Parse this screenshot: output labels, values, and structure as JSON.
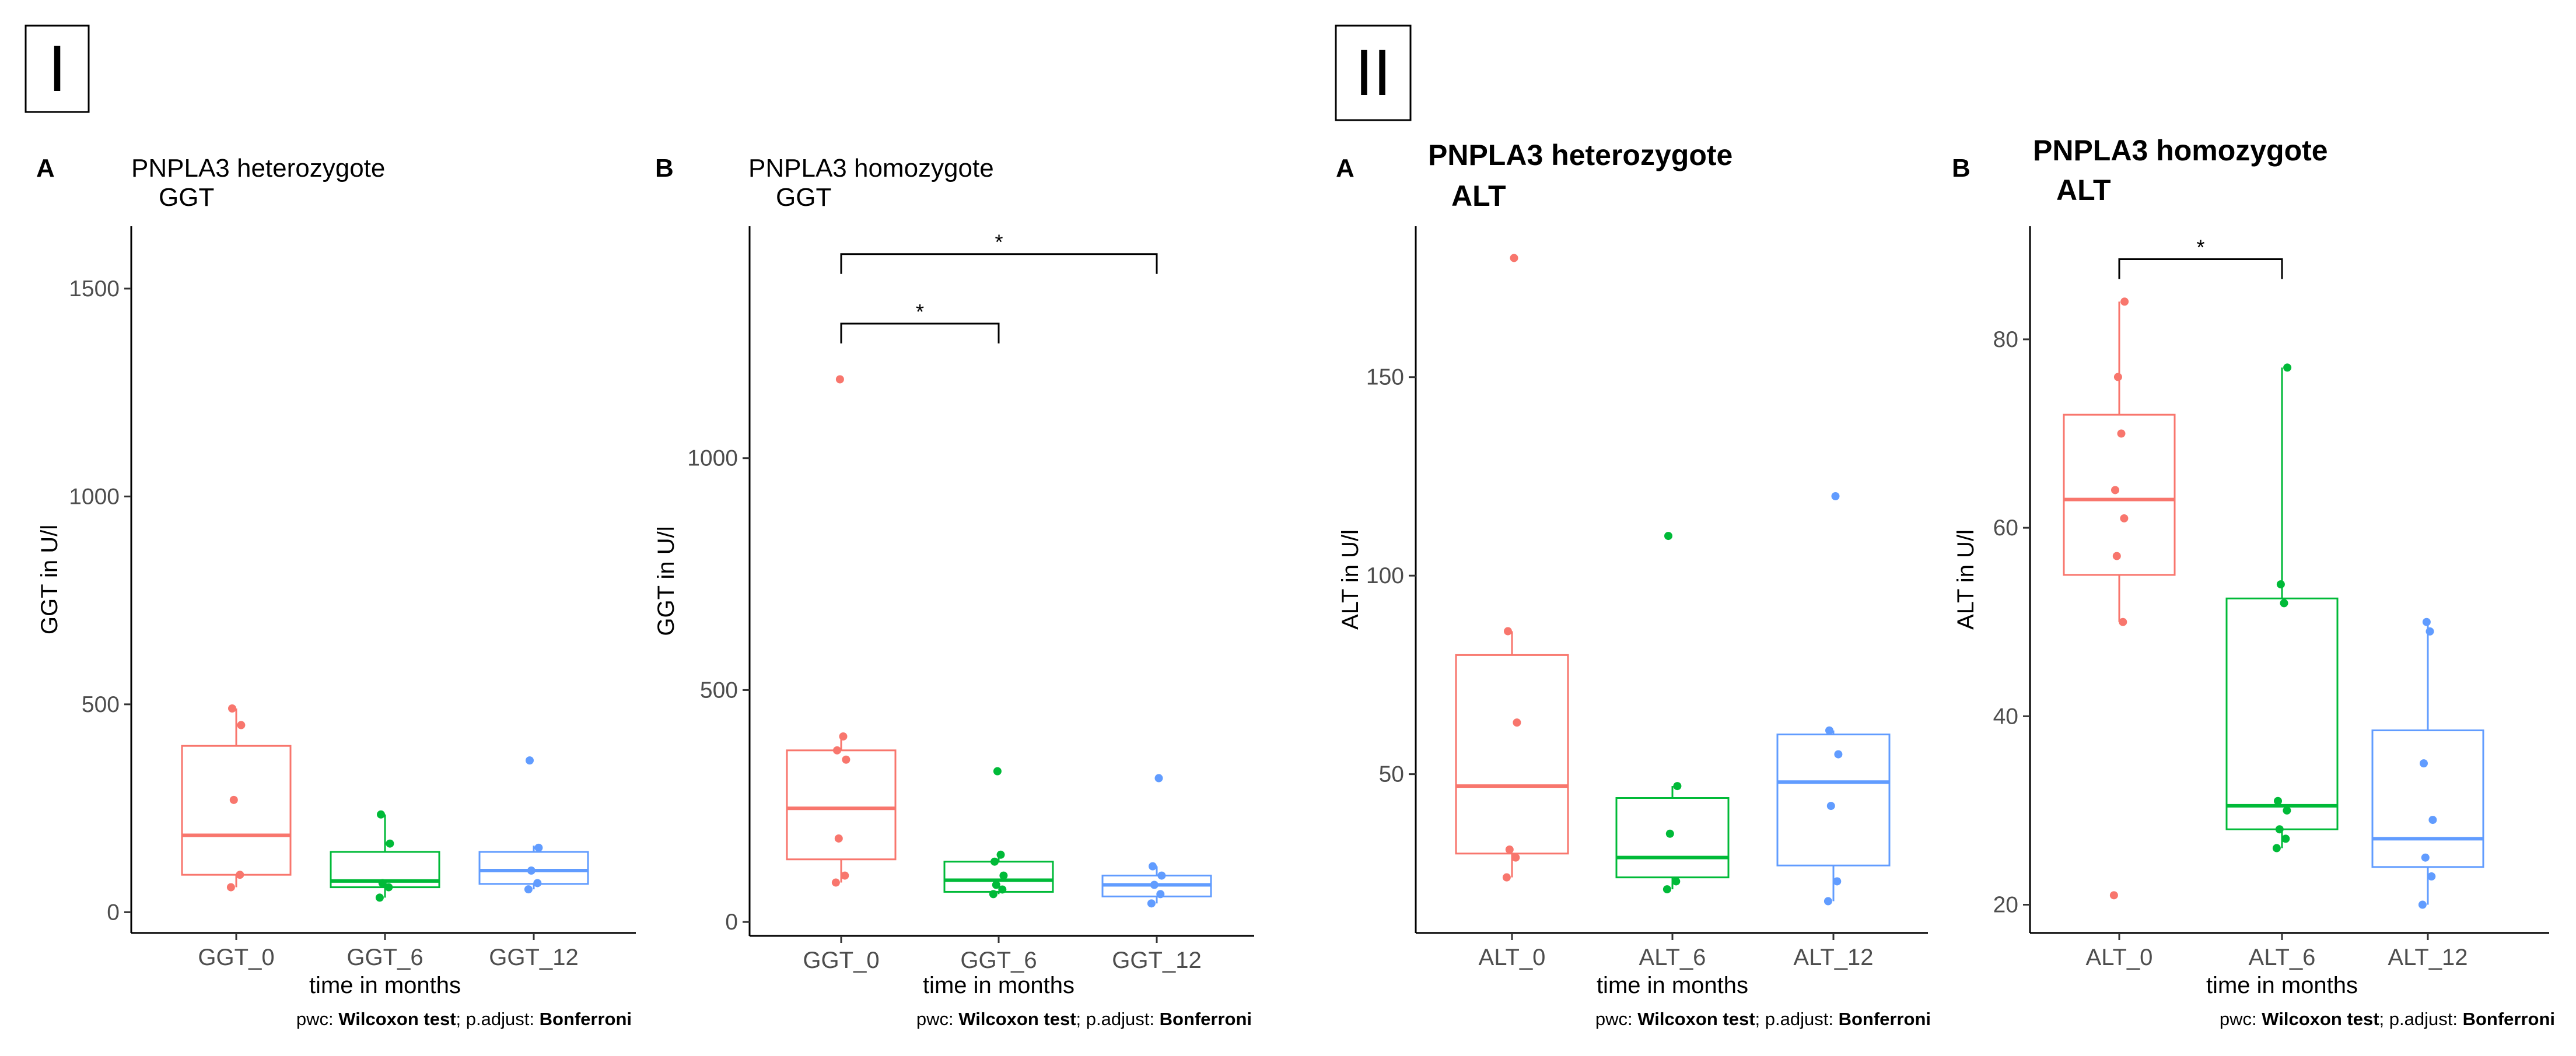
{
  "groups": [
    {
      "label": "I"
    },
    {
      "label": "II"
    }
  ],
  "chart_data": [
    {
      "type": "box",
      "panel": "A",
      "group": "I",
      "title": "PNPLA3 heterozygote",
      "subtitle": "GGT",
      "xlabel": "time in months",
      "ylabel": "GGT in U/l",
      "ylim": [
        -50,
        1650
      ],
      "yticks": [
        0,
        500,
        1000,
        1500
      ],
      "categories": [
        "GGT_0",
        "GGT_6",
        "GGT_12"
      ],
      "colors": [
        "#f8766d",
        "#00ba38",
        "#619cff"
      ],
      "boxes": [
        {
          "q1": 90,
          "median": 185,
          "q3": 400,
          "whisker_low": 60,
          "whisker_high": 490,
          "points": [
            60,
            90,
            270,
            450,
            490
          ]
        },
        {
          "q1": 60,
          "median": 75,
          "q3": 145,
          "whisker_low": 35,
          "whisker_high": 235,
          "points": [
            35,
            60,
            70,
            165,
            235
          ]
        },
        {
          "q1": 68,
          "median": 100,
          "q3": 145,
          "whisker_low": 55,
          "whisker_high": 160,
          "points": [
            55,
            70,
            100,
            155,
            365
          ]
        }
      ],
      "comparisons": [],
      "caption": {
        "prefix": "pwc: ",
        "test": "Wilcoxon test",
        "mid": "; p.adjust: ",
        "adjust": "Bonferroni"
      }
    },
    {
      "type": "box",
      "panel": "B",
      "group": "I",
      "title": "PNPLA3 homozygote",
      "subtitle": "GGT",
      "xlabel": "time in months",
      "ylabel": "GGT in U/l",
      "ylim": [
        -30,
        1500
      ],
      "yticks": [
        0,
        500,
        1000
      ],
      "categories": [
        "GGT_0",
        "GGT_6",
        "GGT_12"
      ],
      "colors": [
        "#f8766d",
        "#00ba38",
        "#619cff"
      ],
      "boxes": [
        {
          "q1": 135,
          "median": 245,
          "q3": 370,
          "whisker_low": 85,
          "whisker_high": 400,
          "points": [
            85,
            100,
            180,
            350,
            370,
            400,
            1170
          ]
        },
        {
          "q1": 65,
          "median": 90,
          "q3": 130,
          "whisker_low": 60,
          "whisker_high": 145,
          "points": [
            60,
            70,
            80,
            100,
            130,
            145,
            325
          ]
        },
        {
          "q1": 55,
          "median": 80,
          "q3": 100,
          "whisker_low": 40,
          "whisker_high": 120,
          "points": [
            40,
            60,
            80,
            100,
            120,
            310
          ]
        }
      ],
      "comparisons": [
        {
          "from": 0,
          "to": 1,
          "label": "*",
          "y": 1290
        },
        {
          "from": 0,
          "to": 2,
          "label": "*",
          "y": 1440
        }
      ],
      "caption": {
        "prefix": "pwc: ",
        "test": "Wilcoxon test",
        "mid": "; p.adjust: ",
        "adjust": "Bonferroni"
      }
    },
    {
      "type": "box",
      "panel": "A",
      "group": "II",
      "title": "PNPLA3 heterozygote",
      "subtitle": "ALT",
      "xlabel": "time in months",
      "ylabel": "ALT in U/l",
      "ylim": [
        10,
        188
      ],
      "yticks": [
        50,
        100,
        150
      ],
      "categories": [
        "ALT_0",
        "ALT_6",
        "ALT_12"
      ],
      "colors": [
        "#f8766d",
        "#00ba38",
        "#619cff"
      ],
      "boxes": [
        {
          "q1": 30,
          "median": 47,
          "q3": 80,
          "whisker_low": 24,
          "whisker_high": 86,
          "points": [
            24,
            29,
            31,
            63,
            86,
            180
          ]
        },
        {
          "q1": 24,
          "median": 29,
          "q3": 44,
          "whisker_low": 21,
          "whisker_high": 47,
          "points": [
            21,
            23,
            35,
            47,
            110
          ]
        },
        {
          "q1": 27,
          "median": 48,
          "q3": 60,
          "whisker_low": 18,
          "whisker_high": 61,
          "points": [
            18,
            23,
            42,
            55,
            61,
            120
          ]
        }
      ],
      "comparisons": [],
      "caption": {
        "prefix": "pwc: ",
        "test": "Wilcoxon test",
        "mid": "; p.adjust: ",
        "adjust": "Bonferroni"
      }
    },
    {
      "type": "box",
      "panel": "B",
      "group": "II",
      "title": "PNPLA3 homozygote",
      "subtitle": "ALT",
      "xlabel": "time in months",
      "ylabel": "ALT in U/l",
      "ylim": [
        17,
        92
      ],
      "yticks": [
        20,
        40,
        60,
        80
      ],
      "categories": [
        "ALT_0",
        "ALT_6",
        "ALT_12"
      ],
      "colors": [
        "#f8766d",
        "#00ba38",
        "#619cff"
      ],
      "boxes": [
        {
          "q1": 55,
          "median": 63,
          "q3": 72,
          "whisker_low": 50,
          "whisker_high": 84,
          "points": [
            21,
            50,
            57,
            61,
            64,
            70,
            76,
            84
          ]
        },
        {
          "q1": 28,
          "median": 30.5,
          "q3": 52.5,
          "whisker_low": 26,
          "whisker_high": 77,
          "points": [
            26,
            27,
            28,
            30,
            31,
            52,
            54,
            77
          ]
        },
        {
          "q1": 24,
          "median": 27,
          "q3": 38.5,
          "whisker_low": 20,
          "whisker_high": 50,
          "points": [
            20,
            23,
            25,
            29,
            35,
            49,
            50
          ]
        }
      ],
      "comparisons": [
        {
          "from": 0,
          "to": 1,
          "label": "*",
          "y": 88.5
        }
      ],
      "caption": {
        "prefix": "pwc: ",
        "test": "Wilcoxon test",
        "mid": "; p.adjust: ",
        "adjust": "Bonferroni"
      }
    }
  ]
}
